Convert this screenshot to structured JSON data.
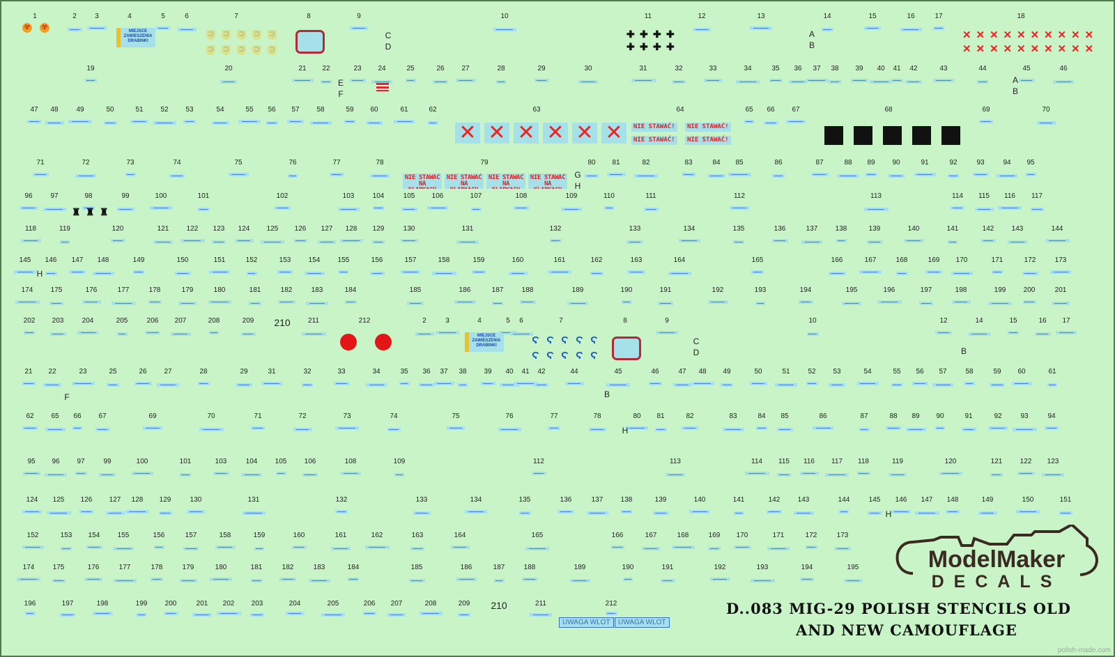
{
  "sheet": {
    "title_line1": "D..083 MIG-29 POLISH STENCILS OLD",
    "title_line2": "AND NEW CAMOUFLAGE",
    "logo_top": "ModelMaker",
    "logo_bottom": "DECALS",
    "watermark": "polish-made.com",
    "colors": {
      "background": "#c9f4c8",
      "decal": "#a6e1ea",
      "red": "#e21616",
      "text": "#222222"
    }
  },
  "rows": [
    {
      "labels": [
        "1",
        "2",
        "3",
        "4",
        "5",
        "6",
        "7",
        "8",
        "9",
        "10",
        "11",
        "12",
        "13",
        "14",
        "15",
        "16",
        "17",
        "18"
      ]
    },
    {
      "labels": [
        "19",
        "20",
        "21",
        "22",
        "23",
        "24",
        "25",
        "26",
        "27",
        "28",
        "29",
        "30",
        "31",
        "32",
        "33",
        "34",
        "35",
        "36",
        "37",
        "38",
        "39",
        "40",
        "41",
        "42",
        "43",
        "44",
        "45",
        "46"
      ]
    },
    {
      "labels": [
        "47",
        "48",
        "49",
        "50",
        "51",
        "52",
        "53",
        "54",
        "55",
        "56",
        "57",
        "58",
        "59",
        "60",
        "61",
        "62",
        "63",
        "64",
        "65",
        "66",
        "67",
        "68",
        "69",
        "70"
      ]
    },
    {
      "labels": [
        "71",
        "72",
        "73",
        "74",
        "75",
        "76",
        "77",
        "78",
        "79",
        "80",
        "81",
        "82",
        "83",
        "84",
        "85",
        "86",
        "87",
        "88",
        "89",
        "90",
        "91",
        "92",
        "93",
        "94",
        "95"
      ]
    },
    {
      "labels": [
        "96",
        "97",
        "98",
        "99",
        "100",
        "101",
        "102",
        "103",
        "104",
        "105",
        "106",
        "107",
        "108",
        "109",
        "110",
        "111",
        "112",
        "113",
        "114",
        "115",
        "116",
        "117"
      ]
    },
    {
      "labels": [
        "118",
        "119",
        "120",
        "121",
        "122",
        "123",
        "124",
        "125",
        "126",
        "127",
        "128",
        "129",
        "130",
        "131",
        "132",
        "133",
        "134",
        "135",
        "136",
        "137",
        "138",
        "139",
        "140",
        "141",
        "142",
        "143",
        "144"
      ]
    },
    {
      "labels": [
        "145",
        "146",
        "147",
        "148",
        "149",
        "150",
        "151",
        "152",
        "153",
        "154",
        "155",
        "156",
        "157",
        "158",
        "159",
        "160",
        "161",
        "162",
        "163",
        "164",
        "165",
        "166",
        "167",
        "168",
        "169",
        "170",
        "171",
        "172",
        "173"
      ]
    },
    {
      "labels": [
        "174",
        "175",
        "176",
        "177",
        "178",
        "179",
        "180",
        "181",
        "182",
        "183",
        "184",
        "185",
        "186",
        "187",
        "188",
        "189",
        "190",
        "191",
        "192",
        "193",
        "194",
        "195",
        "196",
        "197",
        "198",
        "199",
        "200",
        "201"
      ]
    },
    {
      "labels": [
        "202",
        "203",
        "204",
        "205",
        "206",
        "207",
        "208",
        "209",
        "210",
        "211",
        "212",
        "2",
        "3",
        "4",
        "5",
        "6",
        "7",
        "8",
        "9",
        "10",
        "12",
        "14",
        "15",
        "16",
        "17"
      ]
    },
    {
      "labels": [
        "21",
        "22",
        "23",
        "25",
        "26",
        "27",
        "28",
        "29",
        "31",
        "32",
        "33",
        "34",
        "35",
        "36",
        "37",
        "38",
        "39",
        "40",
        "41",
        "42",
        "44",
        "45",
        "46",
        "47",
        "48",
        "49",
        "50",
        "51",
        "52",
        "53",
        "54",
        "55",
        "56",
        "57",
        "58",
        "59",
        "60",
        "61"
      ]
    },
    {
      "labels": [
        "62",
        "65",
        "66",
        "67",
        "69",
        "70",
        "71",
        "72",
        "73",
        "74",
        "75",
        "76",
        "77",
        "78",
        "80",
        "81",
        "82",
        "83",
        "84",
        "85",
        "86",
        "87",
        "88",
        "89",
        "90",
        "91",
        "92",
        "93",
        "94"
      ]
    },
    {
      "labels": [
        "95",
        "96",
        "97",
        "99",
        "100",
        "101",
        "103",
        "104",
        "105",
        "106",
        "108",
        "109",
        "112",
        "113",
        "114",
        "115",
        "116",
        "117",
        "118",
        "119",
        "120",
        "121",
        "122",
        "123"
      ]
    },
    {
      "labels": [
        "124",
        "125",
        "126",
        "127",
        "128",
        "129",
        "130",
        "131",
        "132",
        "133",
        "134",
        "135",
        "136",
        "137",
        "138",
        "139",
        "140",
        "141",
        "142",
        "143",
        "144",
        "145",
        "146",
        "147",
        "148",
        "149",
        "150",
        "151"
      ]
    },
    {
      "labels": [
        "152",
        "153",
        "154",
        "155",
        "156",
        "157",
        "158",
        "159",
        "160",
        "161",
        "162",
        "163",
        "164",
        "165",
        "166",
        "167",
        "168",
        "169",
        "170",
        "171",
        "172",
        "173"
      ]
    },
    {
      "labels": [
        "174",
        "175",
        "176",
        "177",
        "178",
        "179",
        "180",
        "181",
        "182",
        "183",
        "184",
        "185",
        "186",
        "187",
        "188",
        "189",
        "190",
        "191",
        "192",
        "193",
        "194",
        "195"
      ]
    },
    {
      "labels": [
        "196",
        "197",
        "198",
        "199",
        "200",
        "201",
        "202",
        "203",
        "204",
        "205",
        "206",
        "207",
        "208",
        "209",
        "210",
        "211",
        "212"
      ]
    }
  ],
  "variant_letters": [
    "C",
    "D",
    "E",
    "F",
    "A",
    "B",
    "A",
    "B",
    "G",
    "H",
    "H",
    "B",
    "C",
    "D",
    "F",
    "B",
    "H",
    "H"
  ],
  "red_stencils": {
    "nie_stawac": "NIE STAWAĆ!",
    "nie_stawac_na_klapkach": "NIE STAWAĆ NA KLAPKACH",
    "uwaga_wlot": "UWAGA WLOT",
    "ladder": "MIEJSCE ZAWIESZENIA DRABINKI"
  },
  "icons": [
    "radiation-icon",
    "shield-icon",
    "red-cross-icon",
    "red-x-box-icon",
    "black-square-icon",
    "black-cross-icon",
    "red-circle-icon",
    "red-rounded-rect-icon",
    "red-stripes-icon",
    "hook-icon"
  ]
}
